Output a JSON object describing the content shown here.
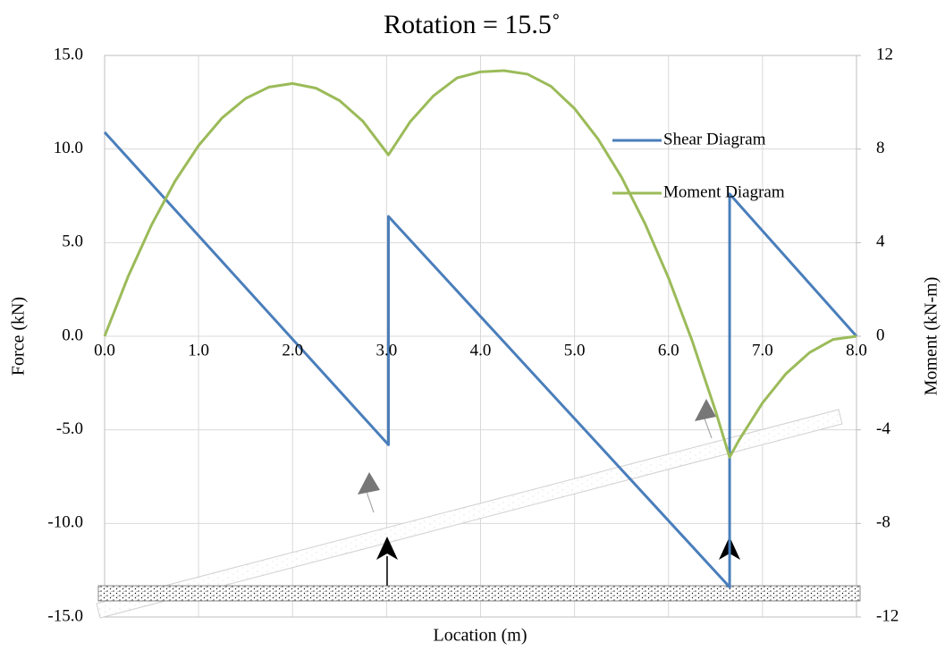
{
  "chart_data": {
    "type": "line",
    "title": "Rotation = 15.5˚",
    "x_label": "Location (m)",
    "y_label": "Force (kN)",
    "y2_label": "Moment (kN-m)",
    "xlim": [
      0,
      8
    ],
    "xticks": [
      {
        "value": 0,
        "label": "0.0"
      },
      {
        "value": 1,
        "label": "1.0"
      },
      {
        "value": 2,
        "label": "2.0"
      },
      {
        "value": 3,
        "label": "3.0"
      },
      {
        "value": 4,
        "label": "4.0"
      },
      {
        "value": 5,
        "label": "5.0"
      },
      {
        "value": 6,
        "label": "6.0"
      },
      {
        "value": 7,
        "label": "7.0"
      },
      {
        "value": 8,
        "label": "8.0"
      }
    ],
    "ylim": [
      -15,
      15
    ],
    "yticks": [
      {
        "value": -15,
        "label": "-15.0"
      },
      {
        "value": -10,
        "label": "-10.0"
      },
      {
        "value": -5,
        "label": "-5.0"
      },
      {
        "value": 0,
        "label": "0.0"
      },
      {
        "value": 5,
        "label": "5.0"
      },
      {
        "value": 10,
        "label": "10.0"
      },
      {
        "value": 15,
        "label": "15.0"
      }
    ],
    "y2lim": [
      -12,
      12
    ],
    "y2ticks": [
      -12,
      -8,
      -4,
      0,
      4,
      8,
      12
    ],
    "grid": true,
    "legend": "upper right",
    "series": [
      {
        "name": "Shear Diagram",
        "color": "#4a7ebb",
        "x": [
          0,
          3.02,
          3.02,
          6.65,
          6.65,
          8
        ],
        "values": [
          10.9,
          -5.8,
          6.4,
          -13.4,
          7.6,
          0
        ]
      },
      {
        "name": "Moment Diagram",
        "color": "#9bbb59",
        "axis": "y2",
        "x": [
          0,
          0.25,
          0.5,
          0.75,
          1,
          1.25,
          1.5,
          1.75,
          2,
          2.25,
          2.5,
          2.75,
          3.02,
          3.25,
          3.5,
          3.75,
          4,
          4.25,
          4.5,
          4.75,
          5,
          5.25,
          5.5,
          5.75,
          6,
          6.25,
          6.5,
          6.65,
          6.75,
          7,
          7.25,
          7.5,
          7.75,
          8
        ],
        "values": [
          0,
          2.55,
          4.76,
          6.63,
          8.15,
          9.33,
          10.16,
          10.65,
          10.8,
          10.6,
          10.07,
          9.18,
          7.75,
          9.16,
          10.28,
          11.04,
          11.3,
          11.35,
          11.2,
          10.68,
          9.73,
          8.43,
          6.8,
          4.81,
          2.49,
          -0.18,
          -3.19,
          -5.17,
          -4.44,
          -2.85,
          -1.6,
          -0.7,
          -0.14,
          0
        ]
      }
    ]
  }
}
